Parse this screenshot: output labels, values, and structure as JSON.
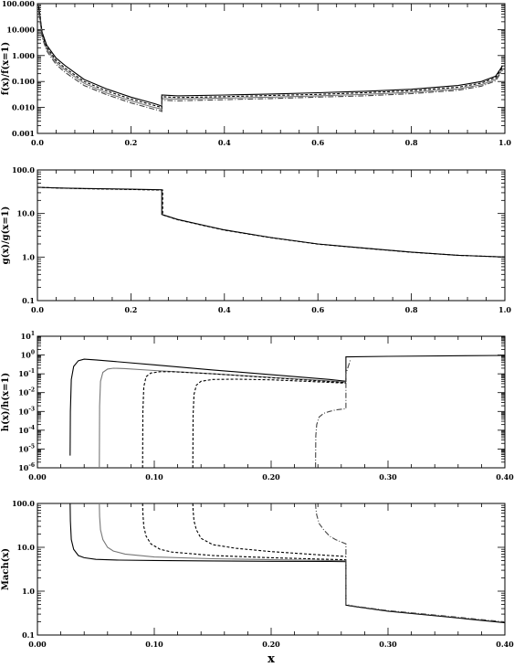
{
  "chart_data": [
    {
      "type": "line",
      "ylabel": "f(x)/f(x=1)",
      "xlabel": "",
      "yscale": "log",
      "xlim": [
        0,
        1
      ],
      "ylim": [
        0.001,
        100
      ],
      "x_ticks": [
        0,
        0.2,
        0.4,
        0.6,
        0.8,
        1.0
      ],
      "x_tick_labels": [
        "0.0",
        "0.2",
        "0.4",
        "0.6",
        "0.8",
        "1.0"
      ],
      "y_ticks": [
        0.001,
        0.01,
        0.1,
        1,
        10,
        100
      ],
      "y_tick_labels": [
        "0.001",
        "0.010",
        "0.100",
        "1.000",
        "10.000",
        "100.000"
      ],
      "series": [
        {
          "style": "solid",
          "color": "#000000",
          "x": [
            0.003,
            0.01,
            0.02,
            0.04,
            0.06,
            0.1,
            0.15,
            0.2,
            0.25,
            0.262,
            0.266,
            0.266,
            0.3,
            0.4,
            0.5,
            0.6,
            0.7,
            0.8,
            0.9,
            0.95,
            0.98,
            0.995
          ],
          "y": [
            80,
            8,
            2.5,
            0.8,
            0.4,
            0.12,
            0.05,
            0.025,
            0.014,
            0.012,
            0.011,
            0.03,
            0.028,
            0.03,
            0.033,
            0.037,
            0.042,
            0.05,
            0.07,
            0.1,
            0.16,
            0.4
          ]
        },
        {
          "style": "solid",
          "color": "#777777",
          "x": [
            0.003,
            0.01,
            0.02,
            0.04,
            0.06,
            0.1,
            0.15,
            0.2,
            0.25,
            0.262,
            0.266,
            0.266,
            0.3,
            0.4,
            0.5,
            0.6,
            0.7,
            0.8,
            0.9,
            0.95,
            0.98,
            0.995
          ],
          "y": [
            60,
            6,
            1.8,
            0.55,
            0.27,
            0.085,
            0.035,
            0.018,
            0.01,
            0.009,
            0.008,
            0.022,
            0.021,
            0.023,
            0.025,
            0.028,
            0.032,
            0.038,
            0.052,
            0.075,
            0.12,
            0.3
          ]
        },
        {
          "style": "dashed",
          "color": "#000000",
          "x": [
            0.003,
            0.01,
            0.02,
            0.04,
            0.06,
            0.1,
            0.15,
            0.2,
            0.25,
            0.262,
            0.266,
            0.266,
            0.3,
            0.4,
            0.5,
            0.6,
            0.7,
            0.8,
            0.9,
            0.95,
            0.98,
            0.995
          ],
          "y": [
            70,
            7,
            2.1,
            0.65,
            0.32,
            0.1,
            0.042,
            0.021,
            0.012,
            0.0105,
            0.0095,
            0.026,
            0.024,
            0.026,
            0.029,
            0.032,
            0.037,
            0.044,
            0.06,
            0.087,
            0.14,
            0.35
          ]
        },
        {
          "style": "dashdot",
          "color": "#444444",
          "x": [
            0.003,
            0.01,
            0.02,
            0.04,
            0.06,
            0.1,
            0.15,
            0.2,
            0.25,
            0.262,
            0.266,
            0.266,
            0.3,
            0.4,
            0.5,
            0.6,
            0.7,
            0.8,
            0.9,
            0.95,
            0.98,
            0.995
          ],
          "y": [
            50,
            5,
            1.5,
            0.45,
            0.22,
            0.07,
            0.03,
            0.015,
            0.0085,
            0.0075,
            0.007,
            0.019,
            0.018,
            0.02,
            0.022,
            0.025,
            0.028,
            0.034,
            0.046,
            0.066,
            0.105,
            0.27
          ]
        }
      ]
    },
    {
      "type": "line",
      "ylabel": "g(x)/g(x=1)",
      "xlabel": "",
      "yscale": "log",
      "xlim": [
        0,
        1
      ],
      "ylim": [
        0.1,
        100
      ],
      "x_ticks": [
        0,
        0.2,
        0.4,
        0.6,
        0.8,
        1.0
      ],
      "x_tick_labels": [
        "0.0",
        "0.2",
        "0.4",
        "0.6",
        "0.8",
        "1.0"
      ],
      "y_ticks": [
        0.1,
        1,
        10,
        100
      ],
      "y_tick_labels": [
        "0.1",
        "1.0",
        "10.0",
        "100.0"
      ],
      "series": [
        {
          "style": "solid",
          "color": "#000000",
          "x": [
            0.0,
            0.05,
            0.1,
            0.2,
            0.262,
            0.266,
            0.266,
            0.3,
            0.4,
            0.5,
            0.6,
            0.7,
            0.8,
            0.9,
            1.0
          ],
          "y": [
            40,
            38.5,
            37.5,
            36,
            35,
            35,
            9.5,
            7.3,
            4.2,
            2.8,
            2.0,
            1.6,
            1.3,
            1.1,
            1.0
          ]
        },
        {
          "style": "dashed",
          "color": "#000000",
          "x": [
            0.0,
            0.05,
            0.1,
            0.2,
            0.262,
            0.268,
            0.268,
            0.3,
            0.4,
            0.5,
            0.6,
            0.7,
            0.8,
            0.9,
            1.0
          ],
          "y": [
            40,
            38.2,
            37.2,
            35.6,
            34.6,
            34.5,
            9.3,
            7.2,
            4.15,
            2.78,
            1.98,
            1.59,
            1.29,
            1.1,
            1.0
          ]
        }
      ]
    },
    {
      "type": "line",
      "ylabel": "h(x)/h(x=1)",
      "xlabel": "",
      "yscale": "log",
      "xlim": [
        0,
        0.4
      ],
      "ylim": [
        1e-06,
        10
      ],
      "x_ticks": [
        0,
        0.1,
        0.2,
        0.3,
        0.4
      ],
      "x_tick_labels": [
        "0.00",
        "0.10",
        "0.20",
        "0.30",
        "0.40"
      ],
      "y_ticks": [
        1e-06,
        1e-05,
        0.0001,
        0.001,
        0.01,
        0.1,
        1,
        10
      ],
      "y_tick_labels": [
        [
          "10",
          "-6"
        ],
        [
          "10",
          "-5"
        ],
        [
          "10",
          "-4"
        ],
        [
          "10",
          "-3"
        ],
        [
          "10",
          "-2"
        ],
        [
          "10",
          "-1"
        ],
        [
          "10",
          "0"
        ],
        [
          "10",
          "1"
        ]
      ],
      "series": [
        {
          "style": "solid",
          "color": "#000000",
          "x": [
            0.028,
            0.0282,
            0.029,
            0.031,
            0.035,
            0.04,
            0.05,
            0.1,
            0.15,
            0.2,
            0.25,
            0.264,
            0.264,
            0.3,
            0.4
          ],
          "y": [
            4.5e-06,
            0.001,
            0.05,
            0.25,
            0.5,
            0.6,
            0.55,
            0.3,
            0.16,
            0.09,
            0.05,
            0.04,
            0.8,
            0.85,
            0.95
          ]
        },
        {
          "style": "solid",
          "color": "#777777",
          "x": [
            0.053,
            0.0532,
            0.054,
            0.056,
            0.06,
            0.065,
            0.075,
            0.1,
            0.15,
            0.2,
            0.25,
            0.264
          ],
          "y": [
            1e-06,
            0.002,
            0.04,
            0.12,
            0.18,
            0.2,
            0.19,
            0.15,
            0.1,
            0.065,
            0.042,
            0.036
          ]
        },
        {
          "style": "dashed",
          "color": "#000000",
          "x": [
            0.09,
            0.0902,
            0.091,
            0.093,
            0.097,
            0.105,
            0.115,
            0.15,
            0.2,
            0.25,
            0.264
          ],
          "y": [
            1e-06,
            0.001,
            0.02,
            0.07,
            0.11,
            0.13,
            0.13,
            0.1,
            0.062,
            0.039,
            0.034
          ]
        },
        {
          "style": "dashed",
          "color": "#000000",
          "x": [
            0.133,
            0.1332,
            0.134,
            0.136,
            0.14,
            0.15,
            0.17,
            0.2,
            0.25,
            0.264
          ],
          "y": [
            1e-06,
            0.0006,
            0.008,
            0.025,
            0.04,
            0.05,
            0.052,
            0.048,
            0.035,
            0.032
          ]
        },
        {
          "style": "dashdot",
          "color": "#444444",
          "x": [
            0.238,
            0.2382,
            0.239,
            0.241,
            0.245,
            0.25,
            0.255,
            0.264,
            0.264,
            0.268
          ],
          "y": [
            1e-06,
            5e-05,
            0.0002,
            0.0005,
            0.0008,
            0.001,
            0.0012,
            0.0014,
            0.1,
            0.6
          ]
        }
      ]
    },
    {
      "type": "line",
      "ylabel": "Mach(x)",
      "xlabel": "x",
      "yscale": "log",
      "xlim": [
        0,
        0.4
      ],
      "ylim": [
        0.1,
        100
      ],
      "x_ticks": [
        0,
        0.1,
        0.2,
        0.3,
        0.4
      ],
      "x_tick_labels": [
        "0.00",
        "0.10",
        "0.20",
        "0.30",
        "0.40"
      ],
      "y_ticks": [
        0.1,
        1,
        10,
        100
      ],
      "y_tick_labels": [
        "0.1",
        "1.0",
        "10.0",
        "100.0"
      ],
      "series": [
        {
          "style": "solid",
          "color": "#000000",
          "x": [
            0.028,
            0.0282,
            0.029,
            0.031,
            0.035,
            0.04,
            0.05,
            0.07,
            0.1,
            0.15,
            0.2,
            0.25,
            0.264,
            0.264,
            0.27,
            0.3,
            0.35,
            0.4
          ],
          "y": [
            100,
            40,
            15,
            9,
            6.5,
            5.8,
            5.3,
            5.1,
            5.0,
            4.9,
            4.8,
            4.75,
            4.7,
            0.48,
            0.45,
            0.35,
            0.26,
            0.19
          ]
        },
        {
          "style": "solid",
          "color": "#777777",
          "x": [
            0.053,
            0.0532,
            0.054,
            0.056,
            0.06,
            0.065,
            0.075,
            0.1,
            0.15,
            0.2,
            0.25,
            0.264
          ],
          "y": [
            100,
            50,
            25,
            15,
            10,
            8.2,
            7.0,
            6.0,
            5.5,
            5.2,
            5.0,
            4.95
          ]
        },
        {
          "style": "dashed",
          "color": "#000000",
          "x": [
            0.09,
            0.0902,
            0.091,
            0.093,
            0.097,
            0.105,
            0.115,
            0.15,
            0.2,
            0.25,
            0.264
          ],
          "y": [
            100,
            60,
            30,
            18,
            12,
            9,
            7.8,
            6.5,
            5.8,
            5.3,
            5.2
          ]
        },
        {
          "style": "dashed",
          "color": "#000000",
          "x": [
            0.133,
            0.1332,
            0.134,
            0.136,
            0.14,
            0.15,
            0.17,
            0.2,
            0.25,
            0.264
          ],
          "y": [
            100,
            70,
            40,
            25,
            16,
            11.5,
            9.5,
            8.0,
            6.5,
            6.2
          ]
        },
        {
          "style": "dashdot",
          "color": "#444444",
          "x": [
            0.238,
            0.2382,
            0.239,
            0.241,
            0.245,
            0.25,
            0.255,
            0.264,
            0.264,
            0.27,
            0.3,
            0.35,
            0.4
          ],
          "y": [
            100,
            80,
            55,
            35,
            25,
            18,
            15,
            12,
            0.5,
            0.46,
            0.36,
            0.27,
            0.2
          ]
        }
      ]
    }
  ]
}
